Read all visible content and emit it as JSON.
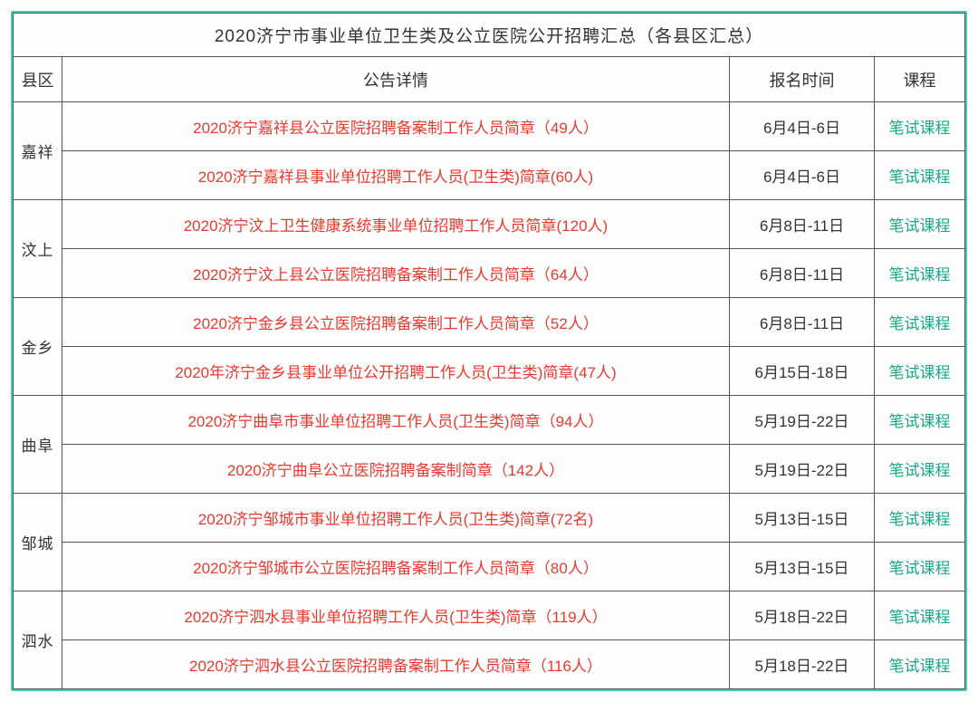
{
  "title": "2020济宁市事业单位卫生类及公立医院公开招聘汇总（各县区汇总）",
  "headers": {
    "county": "县区",
    "detail": "公告详情",
    "time": "报名时间",
    "course": "课程"
  },
  "colors": {
    "border_outer": "#3dcfb5",
    "border_inner": "#555555",
    "text_default": "#333333",
    "text_detail": "#e83a30",
    "text_course": "#19a68c",
    "background": "#fdfdfd"
  },
  "groups": [
    {
      "county": "嘉祥",
      "rows": [
        {
          "detail": "2020济宁嘉祥县公立医院招聘备案制工作人员简章（49人）",
          "time": "6月4日-6日",
          "course": "笔试课程"
        },
        {
          "detail": "2020济宁嘉祥县事业单位招聘工作人员(卫生类)简章(60人)",
          "time": "6月4日-6日",
          "course": "笔试课程"
        }
      ]
    },
    {
      "county": "汶上",
      "rows": [
        {
          "detail": "2020济宁汶上卫生健康系统事业单位招聘工作人员简章(120人)",
          "time": "6月8日-11日",
          "course": "笔试课程"
        },
        {
          "detail": "2020济宁汶上县公立医院招聘备案制工作人员简章（64人）",
          "time": "6月8日-11日",
          "course": "笔试课程"
        }
      ]
    },
    {
      "county": "金乡",
      "rows": [
        {
          "detail": "2020济宁金乡县公立医院招聘备案制工作人员简章（52人）",
          "time": "6月8日-11日",
          "course": "笔试课程"
        },
        {
          "detail": "2020年济宁金乡县事业单位公开招聘工作人员(卫生类)简章(47人)",
          "time": "6月15日-18日",
          "course": "笔试课程"
        }
      ]
    },
    {
      "county": "曲阜",
      "rows": [
        {
          "detail": "2020济宁曲阜市事业单位招聘工作人员(卫生类)简章（94人）",
          "time": "5月19日-22日",
          "course": "笔试课程"
        },
        {
          "detail": "2020济宁曲阜公立医院招聘备案制简章（142人）",
          "time": "5月19日-22日",
          "course": "笔试课程"
        }
      ]
    },
    {
      "county": "邹城",
      "rows": [
        {
          "detail": "2020济宁邹城市事业单位招聘工作人员(卫生类)简章(72名)",
          "time": "5月13日-15日",
          "course": "笔试课程"
        },
        {
          "detail": "2020济宁邹城市公立医院招聘备案制工作人员简章（80人）",
          "time": "5月13日-15日",
          "course": "笔试课程"
        }
      ]
    },
    {
      "county": "泗水",
      "rows": [
        {
          "detail": "2020济宁泗水县事业单位招聘工作人员(卫生类)简章（119人）",
          "time": "5月18日-22日",
          "course": "笔试课程"
        },
        {
          "detail": "2020济宁泗水县公立医院招聘备案制工作人员简章（116人）",
          "time": "5月18日-22日",
          "course": "笔试课程"
        }
      ]
    }
  ]
}
